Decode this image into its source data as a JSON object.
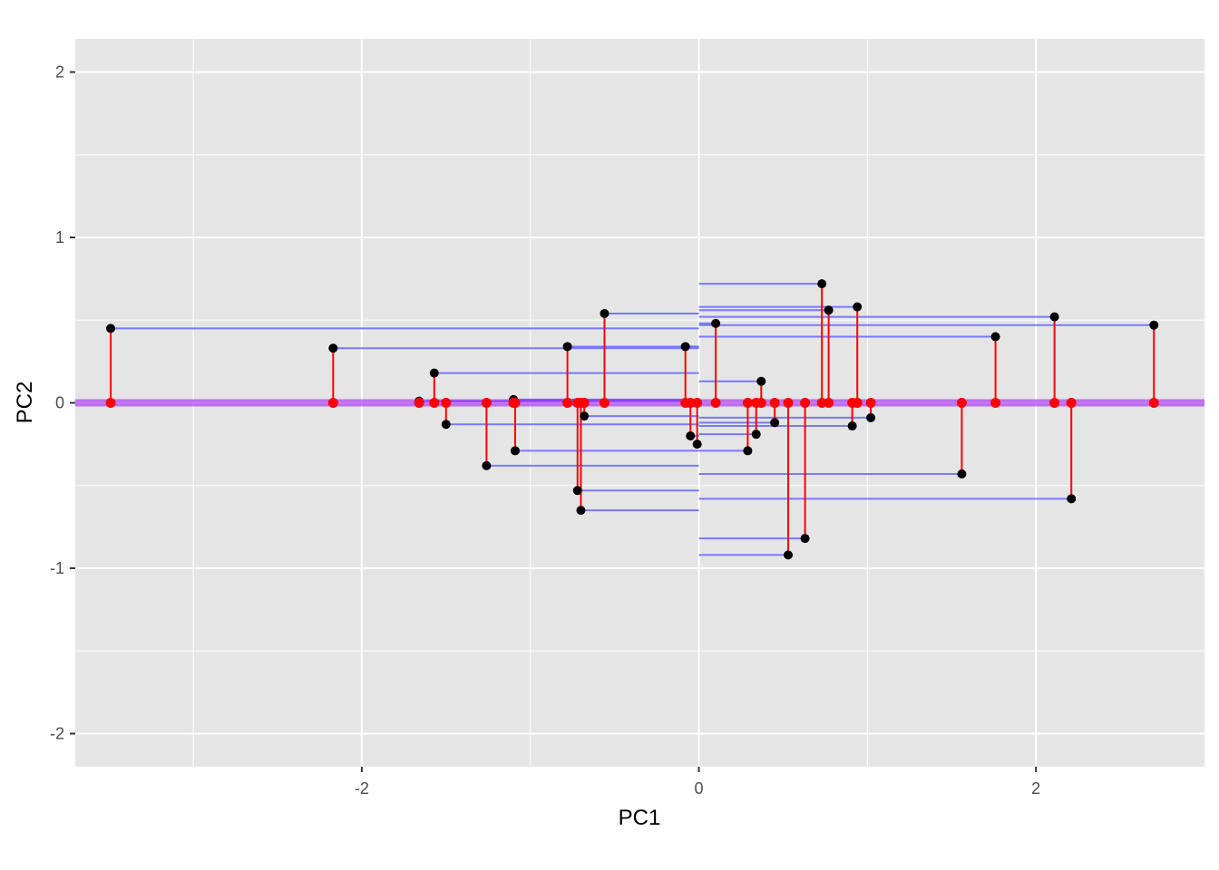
{
  "chart_data": {
    "type": "scatter",
    "xlabel": "PC1",
    "ylabel": "PC2",
    "xlim": [
      -3.7,
      3.0
    ],
    "ylim": [
      -2.2,
      2.2
    ],
    "x_ticks": [
      -2,
      0,
      2
    ],
    "x_tick_labels": [
      "-2",
      "0",
      "2"
    ],
    "y_ticks": [
      -2,
      -1,
      0,
      1,
      2
    ],
    "y_tick_labels": [
      "-2",
      "-1",
      "0",
      "1",
      "2"
    ],
    "grid": true,
    "colors": {
      "panel_background": "#e5e5e5",
      "grid": "#ffffff",
      "points": "#000000",
      "projected_points": "#ff0000",
      "residual_segments": "#ff0000",
      "pc2_segments": "#6666ff",
      "pc1_axis_line": "#a020f0"
    },
    "points": [
      {
        "x": -3.49,
        "y": 0.45
      },
      {
        "x": -2.17,
        "y": 0.33
      },
      {
        "x": -1.66,
        "y": 0.01
      },
      {
        "x": -1.57,
        "y": 0.18
      },
      {
        "x": -1.5,
        "y": -0.13
      },
      {
        "x": -1.26,
        "y": -0.38
      },
      {
        "x": -1.1,
        "y": 0.02
      },
      {
        "x": -1.09,
        "y": -0.29
      },
      {
        "x": -0.78,
        "y": 0.34
      },
      {
        "x": -0.72,
        "y": -0.53
      },
      {
        "x": -0.7,
        "y": -0.65
      },
      {
        "x": -0.68,
        "y": -0.08
      },
      {
        "x": -0.56,
        "y": 0.54
      },
      {
        "x": -0.08,
        "y": 0.34
      },
      {
        "x": -0.05,
        "y": -0.2
      },
      {
        "x": -0.01,
        "y": -0.25
      },
      {
        "x": 0.1,
        "y": 0.48
      },
      {
        "x": 0.29,
        "y": -0.29
      },
      {
        "x": 0.34,
        "y": -0.19
      },
      {
        "x": 0.37,
        "y": 0.13
      },
      {
        "x": 0.45,
        "y": -0.12
      },
      {
        "x": 0.53,
        "y": -0.92
      },
      {
        "x": 0.63,
        "y": -0.82
      },
      {
        "x": 0.73,
        "y": 0.72
      },
      {
        "x": 0.77,
        "y": 0.56
      },
      {
        "x": 0.91,
        "y": -0.14
      },
      {
        "x": 0.94,
        "y": 0.58
      },
      {
        "x": 1.02,
        "y": -0.09
      },
      {
        "x": 1.56,
        "y": -0.43
      },
      {
        "x": 1.76,
        "y": 0.4
      },
      {
        "x": 2.11,
        "y": 0.52
      },
      {
        "x": 2.21,
        "y": -0.58
      },
      {
        "x": 2.7,
        "y": 0.47
      }
    ]
  }
}
